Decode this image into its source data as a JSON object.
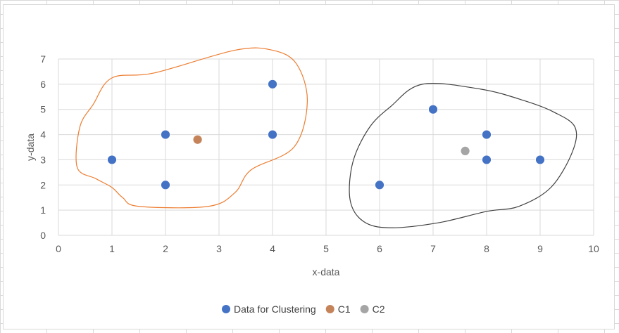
{
  "chart_data": {
    "type": "scatter",
    "title": "",
    "xlabel": "x-data",
    "ylabel": "y-data",
    "xlim": [
      0,
      10
    ],
    "ylim": [
      0,
      7
    ],
    "xticks": [
      "0",
      "1",
      "2",
      "3",
      "4",
      "5",
      "6",
      "7",
      "8",
      "9",
      "10"
    ],
    "yticks": [
      "0",
      "1",
      "2",
      "3",
      "4",
      "5",
      "6",
      "7"
    ],
    "grid": true,
    "legend_position": "bottom",
    "series": [
      {
        "name": "Data for Clustering",
        "color": "#4472c4",
        "points": [
          {
            "x": 1,
            "y": 3
          },
          {
            "x": 2,
            "y": 4
          },
          {
            "x": 2,
            "y": 2
          },
          {
            "x": 4,
            "y": 6
          },
          {
            "x": 4,
            "y": 4
          },
          {
            "x": 6,
            "y": 2
          },
          {
            "x": 7,
            "y": 5
          },
          {
            "x": 8,
            "y": 4
          },
          {
            "x": 8,
            "y": 3
          },
          {
            "x": 9,
            "y": 3
          }
        ]
      },
      {
        "name": "C1",
        "color": "#c5835a",
        "points": [
          {
            "x": 2.6,
            "y": 3.8
          }
        ]
      },
      {
        "name": "C2",
        "color": "#a5a5a5",
        "points": [
          {
            "x": 7.6,
            "y": 3.35
          }
        ]
      }
    ],
    "annotations": [
      {
        "type": "freehand-outline",
        "color": "#ed7d31",
        "points": [
          [
            1,
            6.25
          ],
          [
            1.8,
            6.45
          ],
          [
            3.3,
            7.35
          ],
          [
            4,
            7.35
          ],
          [
            4.45,
            6.8
          ],
          [
            4.65,
            5.3
          ],
          [
            4.4,
            3.5
          ],
          [
            3.6,
            2.6
          ],
          [
            3.3,
            1.7
          ],
          [
            2.8,
            1.15
          ],
          [
            1.5,
            1.15
          ],
          [
            1.2,
            1.5
          ],
          [
            1,
            1.9
          ],
          [
            0.7,
            2.25
          ],
          [
            0.35,
            2.7
          ],
          [
            0.4,
            4.3
          ],
          [
            0.65,
            5.2
          ]
        ]
      },
      {
        "type": "freehand-outline",
        "color": "#404040",
        "points": [
          [
            6.8,
            6.0
          ],
          [
            7.9,
            5.8
          ],
          [
            8.7,
            5.35
          ],
          [
            9.25,
            4.9
          ],
          [
            9.65,
            4.3
          ],
          [
            9.6,
            3.3
          ],
          [
            9.2,
            1.9
          ],
          [
            8.6,
            1.15
          ],
          [
            8.0,
            0.95
          ],
          [
            7.1,
            0.5
          ],
          [
            6.2,
            0.3
          ],
          [
            5.7,
            0.55
          ],
          [
            5.45,
            1.4
          ],
          [
            5.5,
            2.9
          ],
          [
            5.8,
            4.25
          ],
          [
            6.2,
            5.1
          ]
        ]
      }
    ]
  }
}
